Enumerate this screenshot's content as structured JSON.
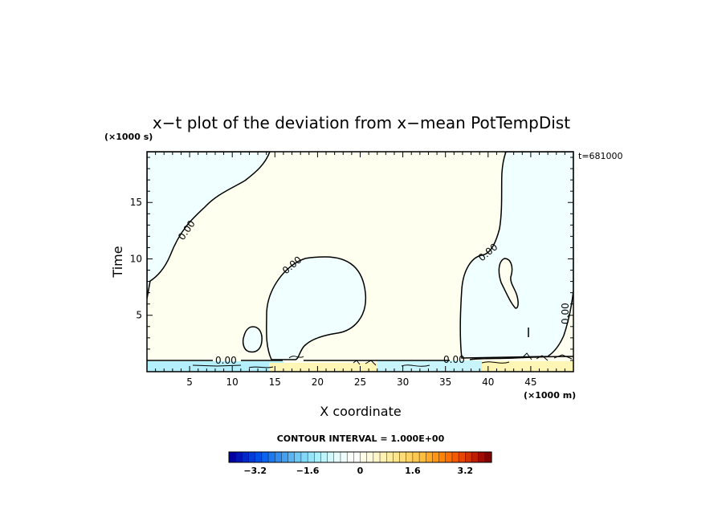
{
  "chart_data": {
    "type": "heatmap",
    "title": "x−t plot of the deviation from x−mean PotTempDist",
    "xlabel": "X coordinate",
    "ylabel": "Time",
    "x_unit": "(×1000 m)",
    "y_unit": "(×1000 s)",
    "time_stamp": "t=681000",
    "xlim": [
      0,
      50
    ],
    "ylim": [
      0,
      19.5
    ],
    "x_ticks": [
      5,
      10,
      15,
      20,
      25,
      30,
      35,
      40,
      45
    ],
    "y_ticks": [
      5,
      10,
      15
    ],
    "contour_level_labels": [
      "0.00",
      "0.00",
      "0.00",
      "0.00",
      "0.00",
      "0.00"
    ],
    "contour_interval": "CONTOUR INTERVAL = 1.000E+00",
    "colorbar": {
      "range": [
        -4,
        4
      ],
      "tick_labels": [
        "−3.2",
        "−1.6",
        "0",
        "1.6",
        "3.2"
      ],
      "tick_values": [
        -3.2,
        -1.6,
        0,
        1.6,
        3.2
      ],
      "colors": [
        "#0000a0",
        "#0014b4",
        "#0028c8",
        "#003cd8",
        "#0050e8",
        "#0a64f0",
        "#1e78f0",
        "#328cf0",
        "#46a0f0",
        "#5ab4f0",
        "#6ec8f4",
        "#82d8f8",
        "#96e4fa",
        "#aaf0fc",
        "#bef4fc",
        "#d2f8fc",
        "#e6fcfc",
        "#f0fefe",
        "#fafffa",
        "#ffffff",
        "#ffffe6",
        "#fffadc",
        "#fff5c8",
        "#fff0b4",
        "#ffeba0",
        "#ffe68c",
        "#ffdc78",
        "#ffd264",
        "#ffc850",
        "#ffbe3c",
        "#ffaa28",
        "#ff9614",
        "#ff8200",
        "#ff6e00",
        "#f55a00",
        "#e64600",
        "#d23200",
        "#be1e00",
        "#a00a00",
        "#820000"
      ]
    },
    "regions": [
      {
        "name": "near-zero positive background",
        "color": "#fffff0"
      },
      {
        "name": "near-zero negative regions",
        "color": "#f0ffff"
      },
      {
        "name": "strong negative band near t=0",
        "color": "#b4f0fc"
      },
      {
        "name": "strong positive band near t=0",
        "color": "#fff5b4"
      }
    ]
  }
}
